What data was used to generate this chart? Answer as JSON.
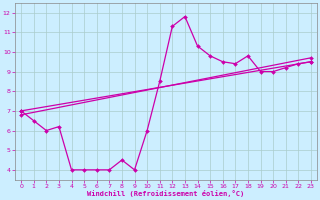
{
  "xlabel": "Windchill (Refroidissement éolien,°C)",
  "bg_color": "#cceeff",
  "grid_color": "#aacccc",
  "line_color": "#cc00aa",
  "xlim": [
    -0.5,
    23.5
  ],
  "ylim": [
    3.5,
    12.5
  ],
  "yticks": [
    4,
    5,
    6,
    7,
    8,
    9,
    10,
    11,
    12
  ],
  "xticks": [
    0,
    1,
    2,
    3,
    4,
    5,
    6,
    7,
    8,
    9,
    10,
    11,
    12,
    13,
    14,
    15,
    16,
    17,
    18,
    19,
    20,
    21,
    22,
    23
  ],
  "series1_x": [
    0,
    1,
    2,
    3,
    4,
    5,
    6,
    7,
    8,
    9,
    10,
    11,
    12,
    13,
    14,
    15,
    16,
    17,
    18,
    19,
    20,
    21,
    22,
    23
  ],
  "series1_y": [
    7.0,
    6.5,
    6.0,
    6.2,
    4.0,
    4.0,
    4.0,
    4.0,
    4.5,
    4.0,
    6.0,
    8.5,
    11.3,
    11.8,
    10.3,
    9.8,
    9.5,
    9.4,
    9.8,
    9.0,
    9.0,
    9.2,
    9.4,
    9.5
  ],
  "series2_x": [
    0,
    23
  ],
  "series2_y": [
    7.0,
    9.5
  ],
  "series3_x": [
    0,
    23
  ],
  "series3_y": [
    6.8,
    9.7
  ]
}
